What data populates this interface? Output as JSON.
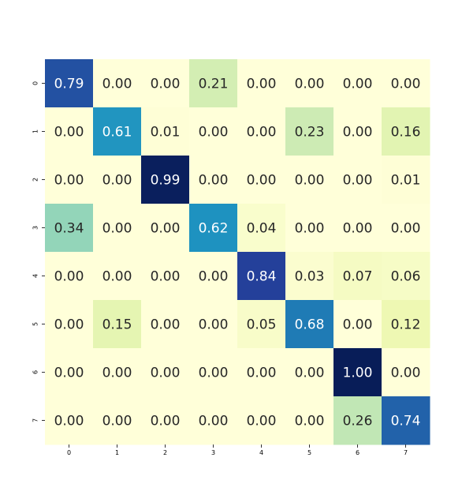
{
  "chart_data": {
    "type": "heatmap",
    "colormap": "YlGnBu",
    "value_range": [
      0,
      1
    ],
    "x_tick_labels": [
      "0",
      "1",
      "2",
      "3",
      "4",
      "5",
      "6",
      "7"
    ],
    "y_tick_labels": [
      "0",
      "1",
      "2",
      "3",
      "4",
      "5",
      "6",
      "7"
    ],
    "values": [
      [
        0.79,
        0.0,
        0.0,
        0.21,
        0.0,
        0.0,
        0.0,
        0.0
      ],
      [
        0.0,
        0.61,
        0.01,
        0.0,
        0.0,
        0.23,
        0.0,
        0.16
      ],
      [
        0.0,
        0.0,
        0.99,
        0.0,
        0.0,
        0.0,
        0.0,
        0.01
      ],
      [
        0.34,
        0.0,
        0.0,
        0.62,
        0.04,
        0.0,
        0.0,
        0.0
      ],
      [
        0.0,
        0.0,
        0.0,
        0.0,
        0.84,
        0.03,
        0.07,
        0.06
      ],
      [
        0.0,
        0.15,
        0.0,
        0.0,
        0.05,
        0.68,
        0.0,
        0.12
      ],
      [
        0.0,
        0.0,
        0.0,
        0.0,
        0.0,
        0.0,
        1.0,
        0.0
      ],
      [
        0.0,
        0.0,
        0.0,
        0.0,
        0.0,
        0.0,
        0.26,
        0.74
      ]
    ],
    "annotation_format": "0.00",
    "grid": false,
    "colorbar": false
  }
}
